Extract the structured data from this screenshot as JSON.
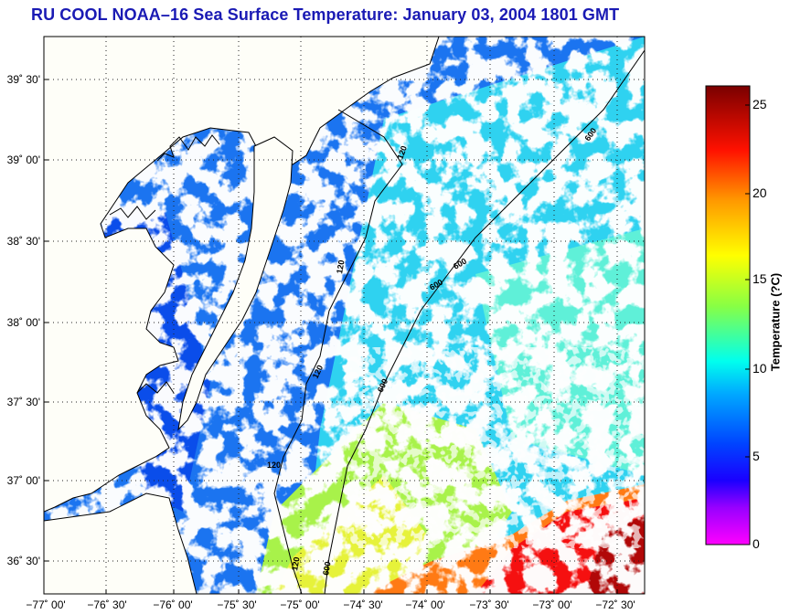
{
  "title": "RU COOL  NOAA–16  Sea Surface Temperature:  January 03, 2004 1801 GMT",
  "map": {
    "lat_labels": [
      "39˚ 30'",
      "39˚ 00'",
      "38˚ 30'",
      "38˚ 00'",
      "37˚ 30'",
      "37˚ 00'",
      "36˚ 30'"
    ],
    "lon_labels": [
      "−77˚ 00'",
      "−76˚ 30'",
      "−76˚ 00'",
      "−75˚ 30'",
      "−75˚ 00'",
      "−74˚ 30'",
      "−74˚ 00'",
      "−73˚ 30'",
      "−73˚ 00'",
      "−72˚ 30'"
    ],
    "contour_labels": [
      "120",
      "120",
      "120",
      "120",
      "120",
      "600",
      "600",
      "600",
      "600",
      "600"
    ],
    "land_color": "#fefef8",
    "grid_style": "dotted"
  },
  "colorbar": {
    "label": "Temperature (?C)",
    "ticks": [
      "25",
      "20",
      "15",
      "10",
      "5",
      "0"
    ],
    "range": [
      0,
      26
    ],
    "colors": [
      "#ff00ff",
      "#3300ff",
      "#0000ff",
      "#0088ff",
      "#00ffff",
      "#88ff44",
      "#ffff00",
      "#ff8800",
      "#ff0000",
      "#7a0000"
    ]
  }
}
